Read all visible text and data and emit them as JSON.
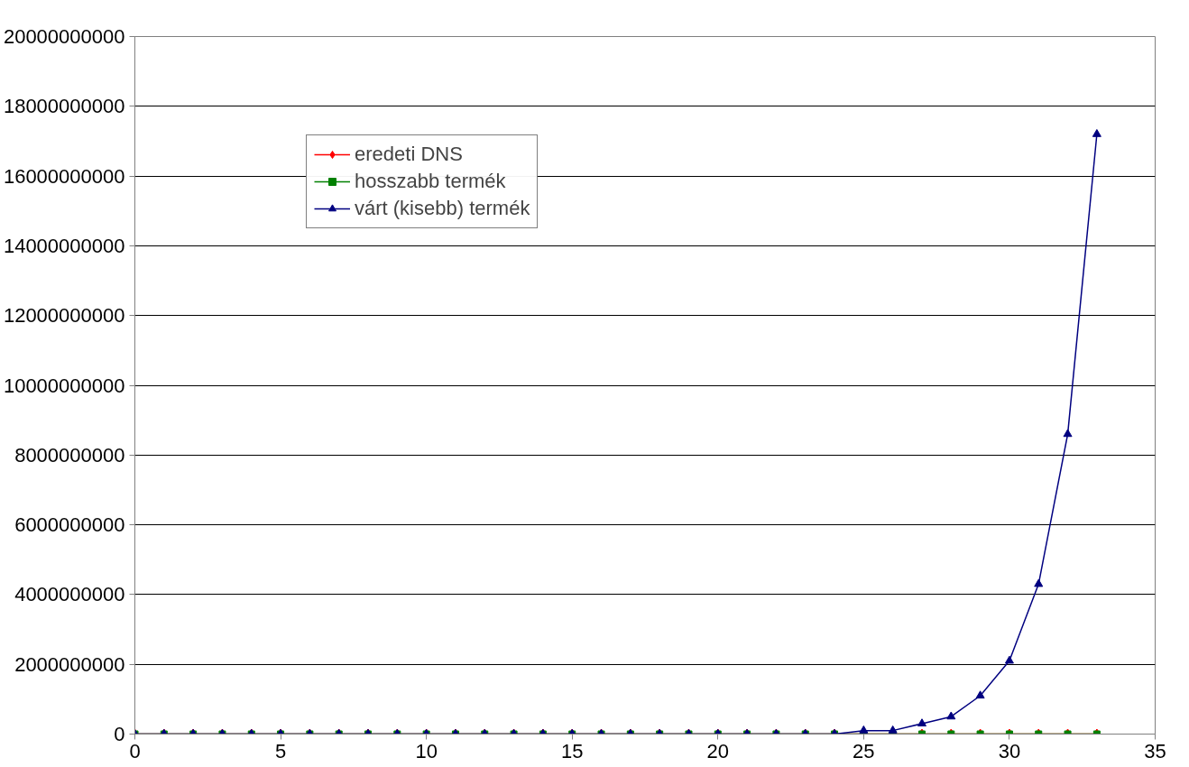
{
  "chart_data": {
    "type": "line",
    "x": [
      0,
      1,
      2,
      3,
      4,
      5,
      6,
      7,
      8,
      9,
      10,
      11,
      12,
      13,
      14,
      15,
      16,
      17,
      18,
      19,
      20,
      21,
      22,
      23,
      24,
      25,
      26,
      27,
      28,
      29,
      30,
      31,
      32,
      33
    ],
    "series": [
      {
        "name": "eredeti DNS",
        "color": "#ff0000",
        "marker": "diamond",
        "values": [
          null,
          null,
          null,
          null,
          null,
          null,
          null,
          null,
          null,
          null,
          null,
          null,
          null,
          null,
          null,
          null,
          null,
          null,
          null,
          null,
          null,
          null,
          null,
          null,
          null,
          null,
          null,
          null,
          null,
          null,
          null,
          null,
          null,
          null
        ]
      },
      {
        "name": "hosszabb termék",
        "color": "#008000",
        "marker": "square",
        "values": [
          0,
          0,
          0,
          0,
          0,
          0,
          0,
          0,
          0,
          0,
          0,
          0,
          0,
          0,
          0,
          0,
          0,
          0,
          0,
          0,
          0,
          0,
          0,
          0,
          0,
          0,
          0,
          0,
          0,
          0,
          0,
          0,
          0,
          0
        ]
      },
      {
        "name": "várt (kisebb) termék",
        "color": "#000080",
        "marker": "triangle",
        "values": [
          0,
          0,
          0,
          0,
          0,
          0,
          0,
          0,
          0,
          0,
          0,
          0,
          0,
          0,
          0,
          0,
          0,
          0,
          0,
          0,
          0,
          0,
          0,
          0,
          0,
          100000000,
          100000000,
          300000000,
          500000000,
          1100000000,
          2100000000,
          4300000000,
          8600000000,
          17200000000
        ]
      }
    ],
    "xlim": [
      0,
      35
    ],
    "xticks": [
      0,
      5,
      10,
      15,
      20,
      25,
      30,
      35
    ],
    "ylim": [
      0,
      20000000000
    ],
    "yticks": [
      0,
      2000000000,
      4000000000,
      6000000000,
      8000000000,
      10000000000,
      12000000000,
      14000000000,
      16000000000,
      18000000000,
      20000000000
    ],
    "grid": "y",
    "legend": "top left",
    "line_style": "solid"
  }
}
